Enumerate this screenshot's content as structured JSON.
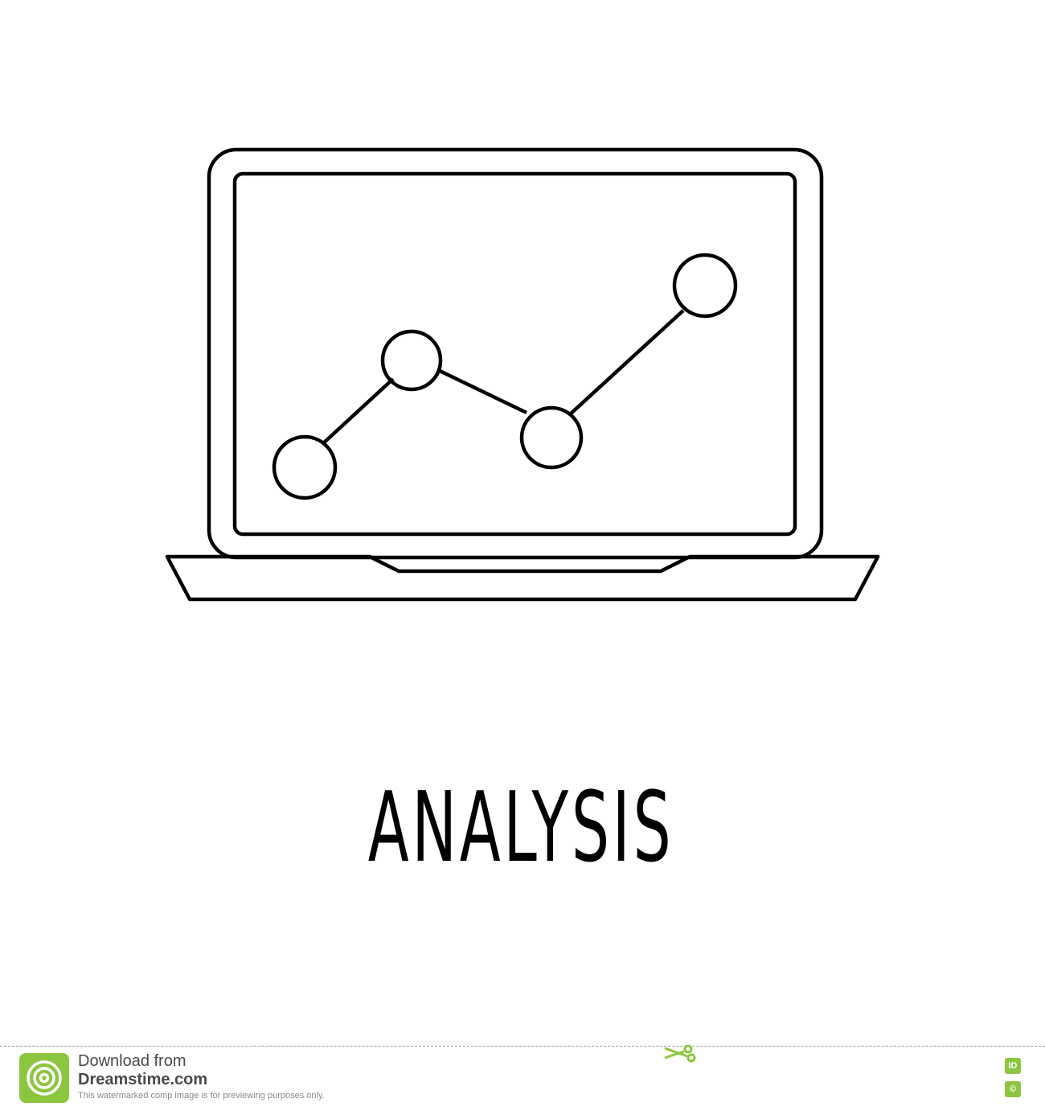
{
  "illustration": {
    "subject": "laptop-with-line-chart",
    "icon": "laptop-analysis-icon",
    "stroke_color": "#000000",
    "node_count": 4
  },
  "caption": {
    "text": "ANALYSIS"
  },
  "footer": {
    "line1": "Download from",
    "line2": "Dreamstime.com",
    "line3": "This watermarked comp image is for previewing purposes only.",
    "badge_id": "ID",
    "badge_copyright": "©",
    "accent_color": "#8cc63f"
  }
}
